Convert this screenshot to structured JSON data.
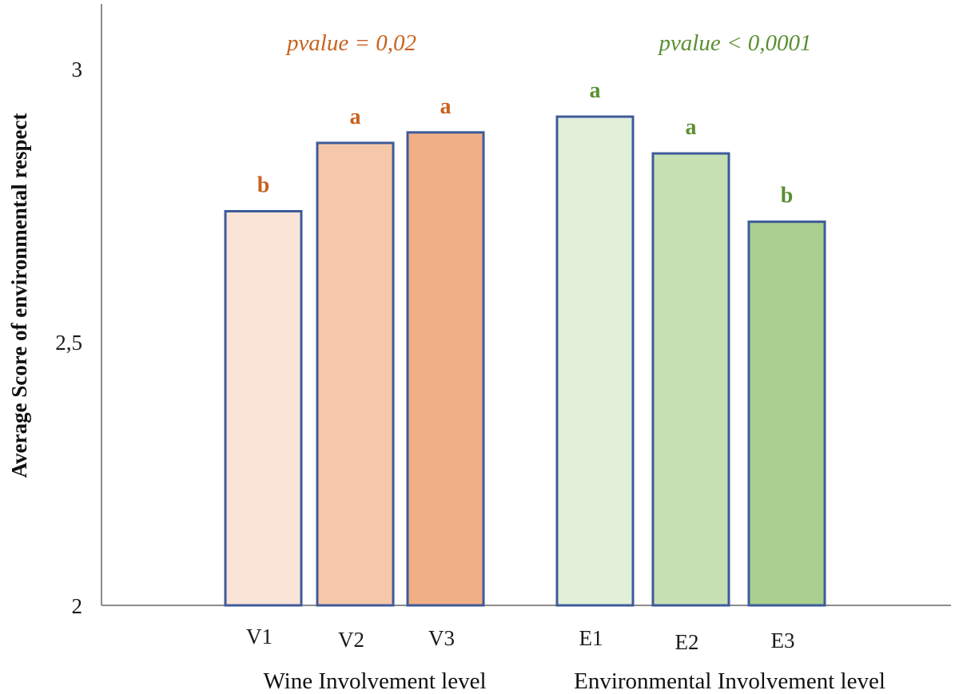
{
  "colors": {
    "wine_text": "#c8621f",
    "env_text": "#5a8f32",
    "bar_outline": "#3e5b9a",
    "axis": "#8c8c8c"
  },
  "chart_data": {
    "type": "bar",
    "title": "",
    "ylabel": "Average Score of environmental respect",
    "ylim": [
      2,
      3.1
    ],
    "yticks": [
      "2",
      "2,5",
      "3"
    ],
    "grid": false,
    "groups": [
      {
        "label": "Wine Involvement level",
        "pvalue_text": "pvalue  = 0,02",
        "color": "#c8621f",
        "bars": [
          {
            "category": "V1",
            "value": 2.75,
            "letter": "b",
            "fill": "#fae3d7"
          },
          {
            "category": "V2",
            "value": 2.88,
            "letter": "a",
            "fill": "#f6c8a9"
          },
          {
            "category": "V3",
            "value": 2.9,
            "letter": "a",
            "fill": "#f1af86"
          }
        ]
      },
      {
        "label": "Environmental Involvement level",
        "pvalue_text": "pvalue < 0,0001",
        "color": "#5a8f32",
        "bars": [
          {
            "category": "E1",
            "value": 2.93,
            "letter": "a",
            "fill": "#e2efd9"
          },
          {
            "category": "E2",
            "value": 2.86,
            "letter": "a",
            "fill": "#c6e0b4"
          },
          {
            "category": "E3",
            "value": 2.73,
            "letter": "b",
            "fill": "#a9d08e"
          }
        ]
      }
    ]
  }
}
